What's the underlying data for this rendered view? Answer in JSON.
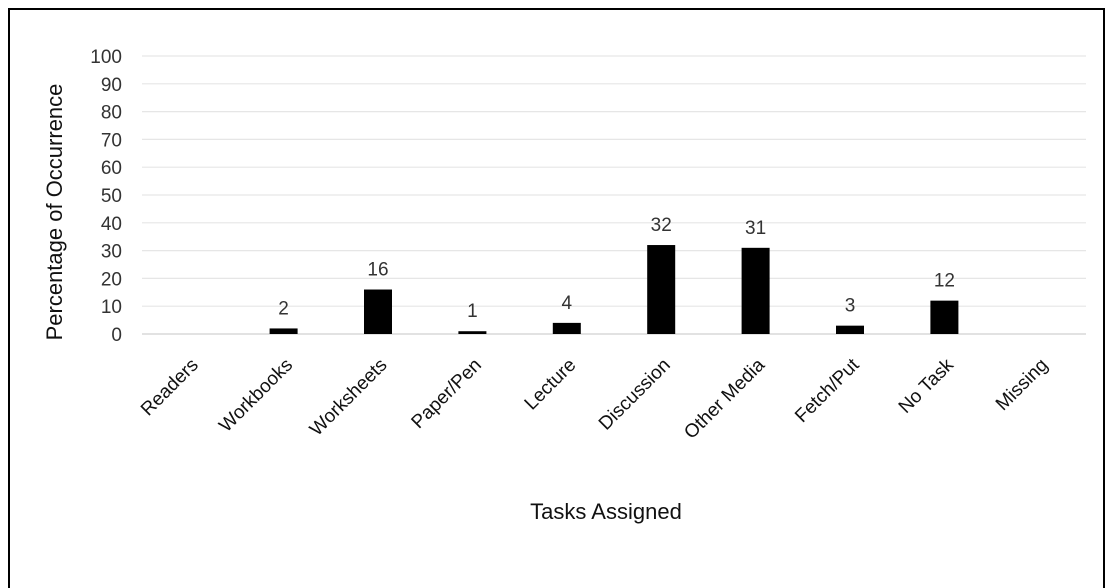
{
  "chart_data": {
    "type": "bar",
    "title": "",
    "xlabel": "Tasks Assigned",
    "ylabel": "Percentage of Occurrence",
    "ylim": [
      0,
      100
    ],
    "yticks": [
      0,
      10,
      20,
      30,
      40,
      50,
      60,
      70,
      80,
      90,
      100
    ],
    "grid": true,
    "categories": [
      "Readers",
      "Workbooks",
      "Worksheets",
      "Paper/Pen",
      "Lecture",
      "Discussion",
      "Other Media",
      "Fetch/Put",
      "No Task",
      "Missing"
    ],
    "values": [
      0,
      2,
      16,
      1,
      4,
      32,
      31,
      3,
      12,
      0
    ],
    "data_labels": [
      "",
      "2",
      "16",
      "1",
      "4",
      "32",
      "31",
      "3",
      "12",
      ""
    ],
    "bar_color": "#000000",
    "grid_color": "#e6e6e6"
  }
}
